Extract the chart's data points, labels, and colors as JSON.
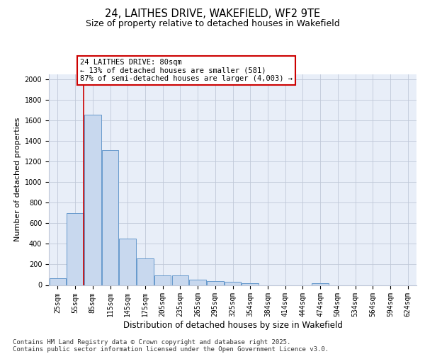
{
  "title_line1": "24, LAITHES DRIVE, WAKEFIELD, WF2 9TE",
  "title_line2": "Size of property relative to detached houses in Wakefield",
  "xlabel": "Distribution of detached houses by size in Wakefield",
  "ylabel": "Number of detached properties",
  "categories": [
    "25sqm",
    "55sqm",
    "85sqm",
    "115sqm",
    "145sqm",
    "175sqm",
    "205sqm",
    "235sqm",
    "265sqm",
    "295sqm",
    "325sqm",
    "354sqm",
    "384sqm",
    "414sqm",
    "444sqm",
    "474sqm",
    "504sqm",
    "534sqm",
    "564sqm",
    "594sqm",
    "624sqm"
  ],
  "values": [
    65,
    700,
    1660,
    1310,
    450,
    255,
    90,
    90,
    50,
    40,
    30,
    20,
    0,
    0,
    0,
    20,
    0,
    0,
    0,
    0,
    0
  ],
  "bar_color": "#c8d8ee",
  "bar_edge_color": "#6699cc",
  "vline_color": "#cc0000",
  "annotation_line1": "24 LAITHES DRIVE: 80sqm",
  "annotation_line2": "← 13% of detached houses are smaller (581)",
  "annotation_line3": "87% of semi-detached houses are larger (4,003) →",
  "annotation_box_color": "#ffffff",
  "annotation_box_edge_color": "#cc0000",
  "ylim": [
    0,
    2050
  ],
  "yticks": [
    0,
    200,
    400,
    600,
    800,
    1000,
    1200,
    1400,
    1600,
    1800,
    2000
  ],
  "axes_bg_color": "#e8eef8",
  "grid_color": "#c0c8d8",
  "footer_line1": "Contains HM Land Registry data © Crown copyright and database right 2025.",
  "footer_line2": "Contains public sector information licensed under the Open Government Licence v3.0.",
  "title_fontsize": 10.5,
  "subtitle_fontsize": 9,
  "tick_fontsize": 7,
  "ylabel_fontsize": 8,
  "xlabel_fontsize": 8.5,
  "annotation_fontsize": 7.5,
  "footer_fontsize": 6.5
}
